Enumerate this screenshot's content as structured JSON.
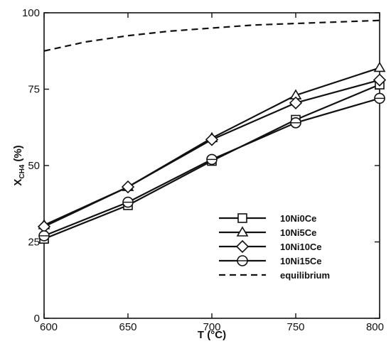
{
  "chart_data": {
    "type": "line",
    "title": "",
    "xlabel": "T (°C)",
    "ylabel": "X",
    "ylabel_subscript": "CH4",
    "ylabel_unit": "(%)",
    "xlim": [
      600,
      800
    ],
    "ylim": [
      0,
      100
    ],
    "xticks": [
      600,
      650,
      700,
      750,
      800
    ],
    "yticks": [
      0,
      25,
      50,
      75,
      100
    ],
    "grid": false,
    "legend_position": "lower-right",
    "x": [
      600,
      650,
      700,
      750,
      800
    ],
    "series": [
      {
        "name": "10Ni0Ce",
        "marker": "square",
        "values": [
          26,
          37,
          51.5,
          65,
          76.5
        ]
      },
      {
        "name": "10Ni5Ce",
        "marker": "triangle",
        "values": [
          30.5,
          43,
          59,
          73,
          82
        ]
      },
      {
        "name": "10Ni10Ce",
        "marker": "diamond",
        "values": [
          30,
          43,
          58.5,
          70.5,
          78
        ]
      },
      {
        "name": "10Ni15Ce",
        "marker": "circle",
        "values": [
          27,
          38,
          52,
          64,
          72
        ]
      },
      {
        "name": "equilibrium",
        "style": "dashed",
        "x": [
          600,
          625,
          650,
          675,
          700,
          725,
          750,
          775,
          800
        ],
        "values": [
          87.5,
          90.5,
          92.5,
          94,
          95,
          96,
          96.5,
          97,
          97.5
        ]
      }
    ]
  }
}
